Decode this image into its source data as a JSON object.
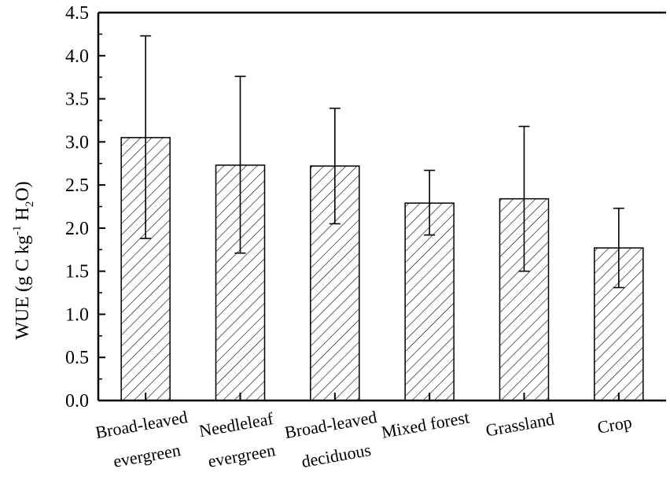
{
  "chart_data": {
    "type": "bar",
    "categories": [
      [
        "Broad-leaved",
        "evergreen"
      ],
      [
        "Needleleaf",
        "evergreen"
      ],
      [
        "Broad-leaved",
        "deciduous"
      ],
      [
        "Mixed forest"
      ],
      [
        "Grassland"
      ],
      [
        "Crop"
      ]
    ],
    "values": [
      3.05,
      2.73,
      2.72,
      2.29,
      2.34,
      1.77
    ],
    "error_low": [
      1.88,
      1.71,
      2.05,
      1.92,
      1.5,
      1.31
    ],
    "error_high": [
      4.23,
      3.76,
      3.39,
      2.67,
      3.18,
      2.23
    ],
    "ylabel": {
      "prefix": "WUE (g C kg",
      "sup": "-1",
      "mid": " H",
      "sub": "2",
      "suffix": "O)"
    },
    "ylim": [
      0,
      4.5
    ],
    "yticks": [
      "0.0",
      "0.5",
      "1.0",
      "1.5",
      "2.0",
      "2.5",
      "3.0",
      "3.5",
      "4.0",
      "4.5"
    ],
    "bar_fill": "hatched",
    "grid": false,
    "colors": {
      "axis": "#000000",
      "bar_stroke": "#000000",
      "hatch": "#000000",
      "bar_bg": "#ffffff"
    }
  }
}
